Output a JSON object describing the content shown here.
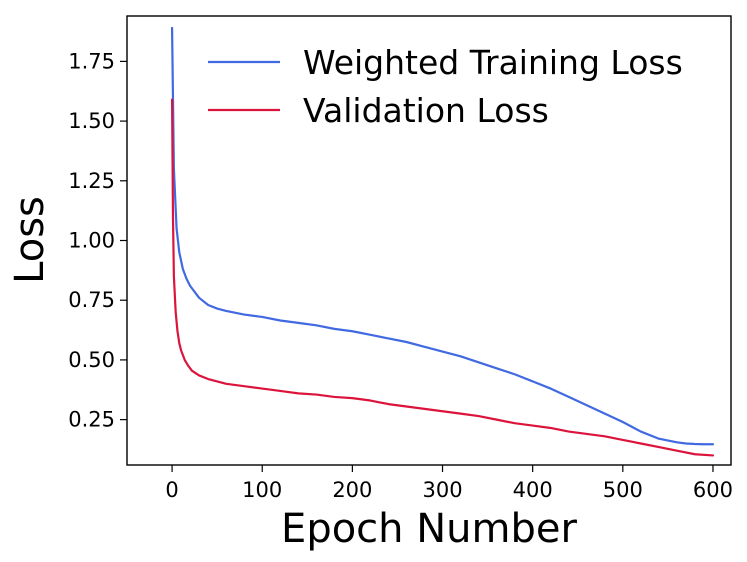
{
  "chart_data": {
    "type": "line",
    "title": "",
    "xlabel": "Epoch Number",
    "ylabel": "Loss",
    "xlim": [
      -50,
      620
    ],
    "ylim": [
      0.06,
      1.94
    ],
    "xticks": [
      0,
      100,
      200,
      300,
      400,
      500,
      600
    ],
    "xtick_labels": [
      "0",
      "100",
      "200",
      "300",
      "400",
      "500",
      "600"
    ],
    "yticks": [
      0.25,
      0.5,
      0.75,
      1.0,
      1.25,
      1.5,
      1.75
    ],
    "ytick_labels": [
      "0.25",
      "0.50",
      "0.75",
      "1.00",
      "1.25",
      "1.50",
      "1.75"
    ],
    "grid": false,
    "legend_position": "top-right",
    "series": [
      {
        "name": "Weighted Training Loss",
        "color": "#4169e1",
        "x": [
          0,
          2,
          5,
          8,
          12,
          16,
          20,
          30,
          40,
          50,
          60,
          80,
          100,
          120,
          140,
          160,
          180,
          200,
          220,
          240,
          260,
          280,
          300,
          320,
          340,
          360,
          380,
          400,
          420,
          440,
          460,
          480,
          500,
          520,
          540,
          560,
          570,
          580,
          590,
          600
        ],
        "values": [
          1.89,
          1.3,
          1.05,
          0.95,
          0.88,
          0.84,
          0.81,
          0.76,
          0.73,
          0.715,
          0.705,
          0.69,
          0.68,
          0.665,
          0.655,
          0.645,
          0.63,
          0.62,
          0.605,
          0.59,
          0.575,
          0.555,
          0.535,
          0.515,
          0.49,
          0.465,
          0.44,
          0.41,
          0.38,
          0.345,
          0.31,
          0.275,
          0.24,
          0.2,
          0.17,
          0.155,
          0.15,
          0.148,
          0.147,
          0.147
        ]
      },
      {
        "name": "Validation Loss",
        "color": "#dc143c",
        "x": [
          0,
          1,
          2,
          4,
          6,
          8,
          10,
          14,
          18,
          22,
          26,
          30,
          40,
          50,
          60,
          80,
          100,
          120,
          140,
          160,
          180,
          200,
          220,
          240,
          260,
          280,
          300,
          320,
          340,
          360,
          380,
          400,
          420,
          440,
          460,
          480,
          500,
          520,
          540,
          560,
          580,
          600
        ],
        "values": [
          1.59,
          1.1,
          0.85,
          0.7,
          0.62,
          0.57,
          0.54,
          0.5,
          0.475,
          0.455,
          0.445,
          0.435,
          0.42,
          0.41,
          0.4,
          0.39,
          0.38,
          0.37,
          0.36,
          0.355,
          0.345,
          0.34,
          0.33,
          0.315,
          0.305,
          0.295,
          0.285,
          0.275,
          0.265,
          0.25,
          0.235,
          0.225,
          0.215,
          0.2,
          0.19,
          0.18,
          0.165,
          0.15,
          0.135,
          0.12,
          0.105,
          0.1
        ]
      }
    ]
  }
}
